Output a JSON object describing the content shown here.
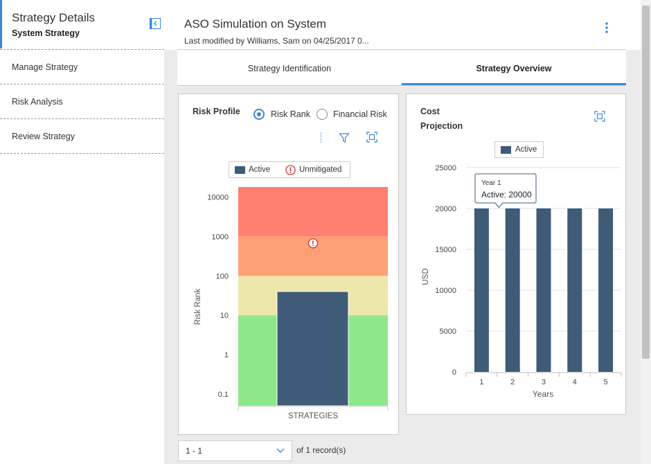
{
  "sidebar": {
    "title": "Strategy Details",
    "subtitle": "System Strategy",
    "collapse_icon": "collapse-left-icon",
    "items": [
      {
        "label": "Manage Strategy"
      },
      {
        "label": "Risk Analysis"
      },
      {
        "label": "Review Strategy"
      }
    ]
  },
  "header": {
    "title": "ASO Simulation on System",
    "subtitle": "Last modified by Williams, Sam on 04/25/2017 0...",
    "menu_icon": "kebab-menu-icon"
  },
  "tabs": [
    {
      "label": "Strategy Identification",
      "active": false
    },
    {
      "label": "Strategy Overview",
      "active": true
    }
  ],
  "risk_profile": {
    "title": "Risk Profile",
    "options": [
      {
        "label": "Risk Rank",
        "selected": true
      },
      {
        "label": "Financial Risk",
        "selected": false
      }
    ],
    "icons": [
      "filter-icon",
      "expand-icon"
    ],
    "legend": [
      {
        "label": "Active",
        "color": "#3f5b78"
      },
      {
        "label": "Unmitigated",
        "icon": "warning-icon",
        "color": "#d32f2f"
      }
    ]
  },
  "cost_projection": {
    "title_line1": "Cost",
    "title_line2": "Projection",
    "icons": [
      "expand-icon"
    ],
    "legend": [
      {
        "label": "Active",
        "color": "#3f5b78"
      }
    ],
    "tooltip": {
      "title": "Year 1",
      "text": "Active: 20000"
    }
  },
  "chart_data": [
    {
      "type": "bar",
      "scale": "log",
      "categories": [
        "STRATEGIES"
      ],
      "series": [
        {
          "name": "Active",
          "values": [
            40
          ]
        }
      ],
      "unmitigated_value": 1000,
      "ylabel": "Risk Rank",
      "xlabel": "STRATEGIES",
      "yticks": [
        "0.1",
        "1",
        "10",
        "100",
        "1000",
        "10000"
      ],
      "bands": [
        {
          "from": 0.05,
          "to": 10,
          "color": "#8ee88a"
        },
        {
          "from": 10,
          "to": 100,
          "color": "#ede7aa"
        },
        {
          "from": 100,
          "to": 1000,
          "color": "#ff9f77"
        },
        {
          "from": 1000,
          "to": 18000,
          "color": "#ff8070"
        }
      ]
    },
    {
      "type": "bar",
      "categories": [
        "1",
        "2",
        "3",
        "4",
        "5"
      ],
      "series": [
        {
          "name": "Active",
          "values": [
            20000,
            20000,
            20000,
            20000,
            20000
          ]
        }
      ],
      "xlabel": "Years",
      "ylabel": "USD",
      "ylim": [
        0,
        25000
      ],
      "yticks": [
        "0",
        "5000",
        "10000",
        "15000",
        "20000",
        "25000"
      ],
      "grid": true,
      "legend": "top"
    }
  ],
  "pager": {
    "value": "1 - 1",
    "chevron_icon": "chevron-down-icon",
    "summary": "of 1 record(s)"
  }
}
